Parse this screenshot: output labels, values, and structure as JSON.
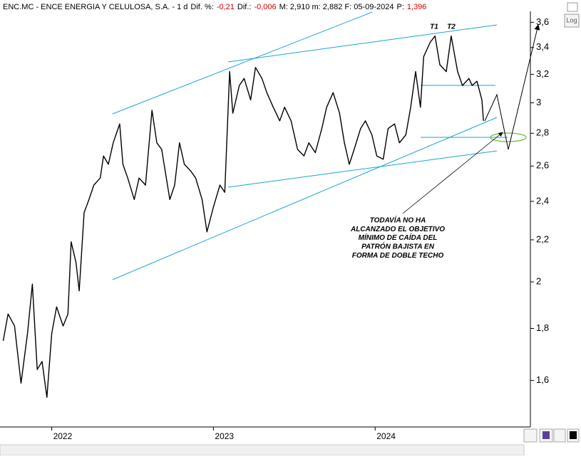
{
  "header": {
    "symbol": "ENC.MC - ENCE ENERGIA Y CELULOSA, S.A. - 1 d",
    "dif_pct_label": "Dif. %:",
    "dif_pct": "-0,21",
    "dif_label": "Dif.:",
    "dif": "-0,006",
    "info": "M: 2,910  m: 2,882  F: 05-09-2024",
    "p_label": "P:",
    "p": "1,396"
  },
  "toolbar": {
    "log": "Log"
  },
  "chart_data": {
    "type": "line",
    "log_scale": true,
    "color": "#000000",
    "xlim": [
      2021.68,
      2024.96
    ],
    "xticks": [
      2022,
      2023,
      2024
    ],
    "ylim": [
      1.44,
      3.69
    ],
    "yticks": [
      {
        "value": 1.6,
        "label": "1,6"
      },
      {
        "value": 1.8,
        "label": "1,8"
      },
      2,
      {
        "value": 2.2,
        "label": "2,2"
      },
      {
        "value": 2.4,
        "label": "2,4"
      },
      {
        "value": 2.6,
        "label": "2,6"
      },
      {
        "value": 2.8,
        "label": "2,8"
      },
      3,
      {
        "value": 3.2,
        "label": "3,2"
      },
      {
        "value": 3.4,
        "label": "3,4"
      },
      {
        "value": 3.6,
        "label": "3,6"
      }
    ],
    "x": [
      2021.7,
      2021.73,
      2021.77,
      2021.81,
      2021.85,
      2021.88,
      2021.91,
      2021.94,
      2021.97,
      2022.0,
      2022.03,
      2022.07,
      2022.1,
      2022.12,
      2022.15,
      2022.17,
      2022.2,
      2022.23,
      2022.26,
      2022.3,
      2022.32,
      2022.35,
      2022.38,
      2022.42,
      2022.44,
      2022.47,
      2022.51,
      2022.54,
      2022.58,
      2022.62,
      2022.65,
      2022.68,
      2022.73,
      2022.76,
      2022.79,
      2022.82,
      2022.86,
      2022.89,
      2022.93,
      2022.96,
      2023.0,
      2023.04,
      2023.07,
      2023.1,
      2023.12,
      2023.16,
      2023.19,
      2023.23,
      2023.26,
      2023.3,
      2023.33,
      2023.37,
      2023.41,
      2023.44,
      2023.48,
      2023.52,
      2023.56,
      2023.59,
      2023.63,
      2023.67,
      2023.7,
      2023.74,
      2023.78,
      2023.81,
      2023.84,
      2023.87,
      2023.91,
      2023.94,
      2023.98,
      2024.01,
      2024.05,
      2024.08,
      2024.12,
      2024.15,
      2024.19,
      2024.22,
      2024.25,
      2024.28,
      2024.3,
      2024.34,
      2024.37,
      2024.4,
      2024.44,
      2024.47,
      2024.51,
      2024.54,
      2024.58,
      2024.6,
      2024.63,
      2024.66,
      2024.67
    ],
    "series": [
      {
        "name": "ENC.MC",
        "color": "#000000",
        "values": [
          1.75,
          1.86,
          1.81,
          1.59,
          1.78,
          1.99,
          1.64,
          1.67,
          1.54,
          1.78,
          1.89,
          1.81,
          1.86,
          2.19,
          2.09,
          1.96,
          2.34,
          2.41,
          2.49,
          2.53,
          2.66,
          2.61,
          2.74,
          2.86,
          2.61,
          2.53,
          2.41,
          2.53,
          2.49,
          2.95,
          2.74,
          2.7,
          2.41,
          2.49,
          2.74,
          2.61,
          2.57,
          2.53,
          2.41,
          2.24,
          2.37,
          2.49,
          2.45,
          3.22,
          2.93,
          3.12,
          3.17,
          3.02,
          3.25,
          3.17,
          3.07,
          2.97,
          2.88,
          2.97,
          2.88,
          2.7,
          2.66,
          2.74,
          2.68,
          2.83,
          2.97,
          3.07,
          2.93,
          2.74,
          2.61,
          2.7,
          2.83,
          2.88,
          2.79,
          2.66,
          2.64,
          2.83,
          2.86,
          2.74,
          2.79,
          2.97,
          3.22,
          2.97,
          3.33,
          3.44,
          3.49,
          3.27,
          3.22,
          3.49,
          3.22,
          3.12,
          3.17,
          3.12,
          3.15,
          3.02,
          2.88
        ]
      }
    ],
    "annotations": {
      "t1": "T1",
      "t2": "T2",
      "note": [
        "TODAVÍA NO HA",
        "ALCANZADO EL OBJETIVO",
        "MÍNIMO DE CAÍDA DEL",
        "PATRÓN BAJISTA EN",
        "FORMA DE DOBLE TECHO"
      ]
    }
  }
}
